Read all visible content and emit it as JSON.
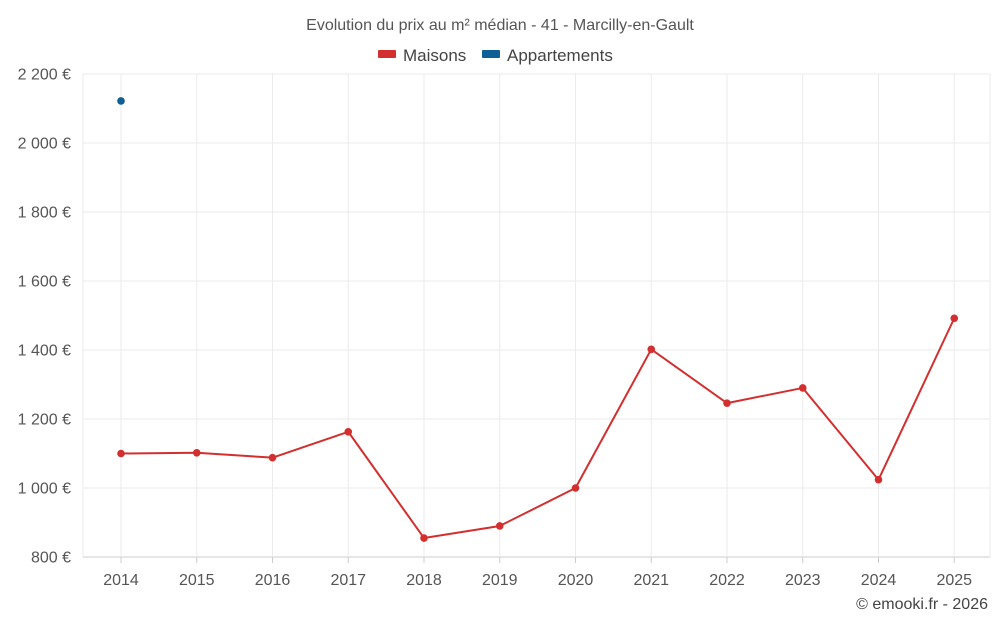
{
  "title": "Evolution du prix au m² médian - 41 - Marcilly-en-Gault",
  "credit": "© emooki.fr - 2026",
  "colors": {
    "maisons": "#d32f2f",
    "appartements": "#0d5f96",
    "grid": "#ebebeb",
    "axis": "#cccccc"
  },
  "chart_data": {
    "type": "line",
    "title": "Evolution du prix au m² médian - 41 - Marcilly-en-Gault",
    "categories": [
      "2014",
      "2015",
      "2016",
      "2017",
      "2018",
      "2019",
      "2020",
      "2021",
      "2022",
      "2023",
      "2024",
      "2025"
    ],
    "y_ticks": [
      800,
      1000,
      1200,
      1400,
      1600,
      1800,
      2000,
      2200
    ],
    "y_tick_labels": [
      "800 €",
      "1 000 €",
      "1 200 €",
      "1 400 €",
      "1 600 €",
      "1 800 €",
      "2 000 €",
      "2 200 €"
    ],
    "ylim": [
      800,
      2200
    ],
    "grid": true,
    "legend_position": "top-center",
    "series": [
      {
        "name": "Maisons",
        "color": "#d32f2f",
        "values": [
          1100,
          1102,
          1088,
          1163,
          855,
          890,
          1000,
          1402,
          1246,
          1290,
          1024,
          1492
        ]
      },
      {
        "name": "Appartements",
        "color": "#0d5f96",
        "values": [
          2122,
          null,
          null,
          null,
          null,
          null,
          null,
          null,
          null,
          null,
          null,
          null
        ]
      }
    ]
  }
}
